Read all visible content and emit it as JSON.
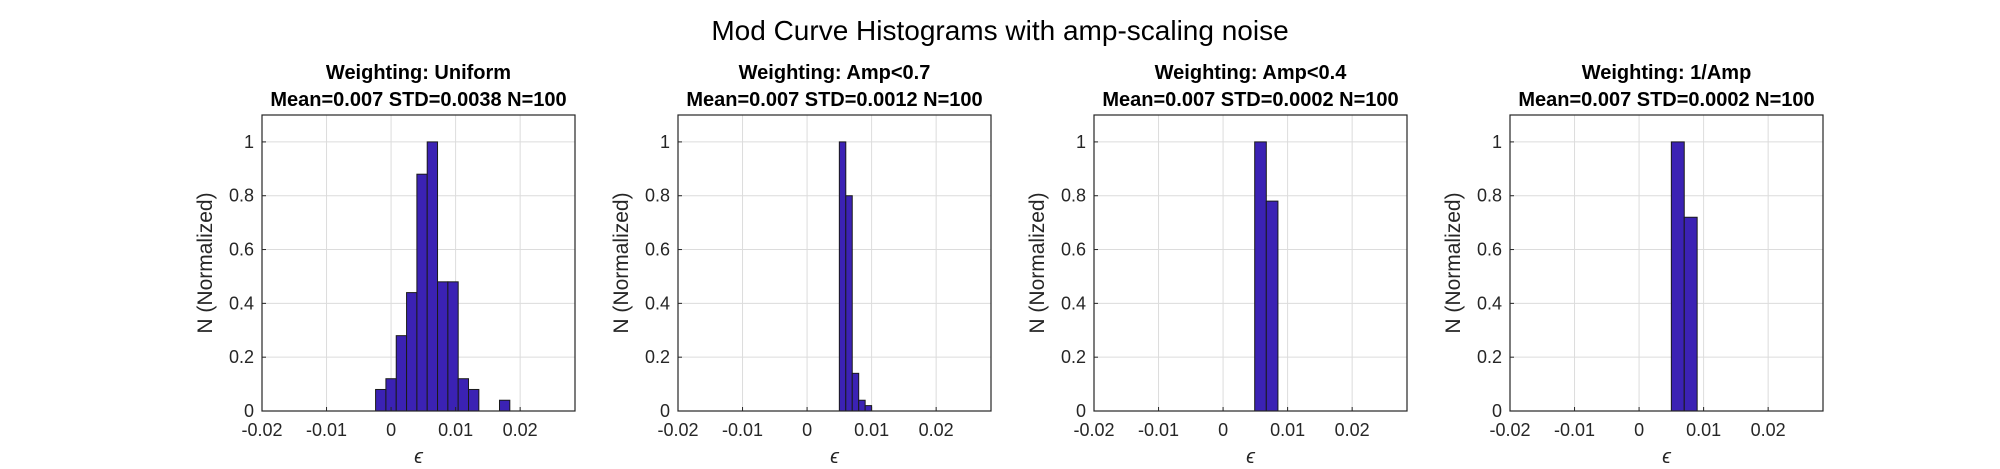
{
  "figure": {
    "title": "Mod Curve Histograms with amp-scaling noise"
  },
  "colors": {
    "bar_fill": "#3b22b4",
    "bar_edge": "#1a1a1a",
    "axis": "#262626",
    "grid": "#dcdcdc"
  },
  "chart_data": [
    {
      "type": "bar",
      "title": "Weighting: Uniform",
      "subtitle": "Mean=0.007 STD=0.0038 N=100",
      "xlabel": "ϵ",
      "ylabel": "N (Normalized)",
      "xlim": [
        -0.02,
        0.0285
      ],
      "ylim": [
        0,
        1.1
      ],
      "xticks": [
        -0.02,
        -0.01,
        0,
        0.01,
        0.02
      ],
      "xtick_labels": [
        "-0.02",
        "-0.01",
        "0",
        "0.01",
        "0.02"
      ],
      "yticks": [
        0,
        0.2,
        0.4,
        0.6,
        0.8,
        1
      ],
      "ytick_labels": [
        "0",
        "0.2",
        "0.4",
        "0.6",
        "0.8",
        "1"
      ],
      "grid": true,
      "bin_width": 0.0016,
      "bins": [
        {
          "x0": -0.0024,
          "value": 0.08
        },
        {
          "x0": -0.0008,
          "value": 0.12
        },
        {
          "x0": 0.0008,
          "value": 0.28
        },
        {
          "x0": 0.0024,
          "value": 0.44
        },
        {
          "x0": 0.004,
          "value": 0.88
        },
        {
          "x0": 0.0056,
          "value": 1.0
        },
        {
          "x0": 0.0072,
          "value": 0.48
        },
        {
          "x0": 0.0088,
          "value": 0.48
        },
        {
          "x0": 0.0104,
          "value": 0.12
        },
        {
          "x0": 0.012,
          "value": 0.08
        },
        {
          "x0": 0.0136,
          "value": 0.0
        },
        {
          "x0": 0.0152,
          "value": 0.0
        },
        {
          "x0": 0.0168,
          "value": 0.04
        }
      ]
    },
    {
      "type": "bar",
      "title": "Weighting: Amp<0.7",
      "subtitle": "Mean=0.007 STD=0.0012 N=100",
      "xlabel": "ϵ",
      "ylabel": "N (Normalized)",
      "xlim": [
        -0.02,
        0.0285
      ],
      "ylim": [
        0,
        1.1
      ],
      "xticks": [
        -0.02,
        -0.01,
        0,
        0.01,
        0.02
      ],
      "xtick_labels": [
        "-0.02",
        "-0.01",
        "0",
        "0.01",
        "0.02"
      ],
      "yticks": [
        0,
        0.2,
        0.4,
        0.6,
        0.8,
        1
      ],
      "ytick_labels": [
        "0",
        "0.2",
        "0.4",
        "0.6",
        "0.8",
        "1"
      ],
      "grid": true,
      "bin_width": 0.001,
      "bins": [
        {
          "x0": 0.005,
          "value": 1.0
        },
        {
          "x0": 0.006,
          "value": 0.8
        },
        {
          "x0": 0.007,
          "value": 0.14
        },
        {
          "x0": 0.008,
          "value": 0.04
        },
        {
          "x0": 0.009,
          "value": 0.02
        }
      ]
    },
    {
      "type": "bar",
      "title": "Weighting: Amp<0.4",
      "subtitle": "Mean=0.007 STD=0.0002 N=100",
      "xlabel": "ϵ",
      "ylabel": "N (Normalized)",
      "xlim": [
        -0.02,
        0.0285
      ],
      "ylim": [
        0,
        1.1
      ],
      "xticks": [
        -0.02,
        -0.01,
        0,
        0.01,
        0.02
      ],
      "xtick_labels": [
        "-0.02",
        "-0.01",
        "0",
        "0.01",
        "0.02"
      ],
      "yticks": [
        0,
        0.2,
        0.4,
        0.6,
        0.8,
        1
      ],
      "ytick_labels": [
        "0",
        "0.2",
        "0.4",
        "0.6",
        "0.8",
        "1"
      ],
      "grid": true,
      "bin_width": 0.0018,
      "bins": [
        {
          "x0": 0.0049,
          "value": 1.0
        },
        {
          "x0": 0.0067,
          "value": 0.78
        }
      ]
    },
    {
      "type": "bar",
      "title": "Weighting: 1/Amp",
      "subtitle": "Mean=0.007 STD=0.0002 N=100",
      "xlabel": "ϵ",
      "ylabel": "N (Normalized)",
      "xlim": [
        -0.02,
        0.0285
      ],
      "ylim": [
        0,
        1.1
      ],
      "xticks": [
        -0.02,
        -0.01,
        0,
        0.01,
        0.02
      ],
      "xtick_labels": [
        "-0.02",
        "-0.01",
        "0",
        "0.01",
        "0.02"
      ],
      "yticks": [
        0,
        0.2,
        0.4,
        0.6,
        0.8,
        1
      ],
      "ytick_labels": [
        "0",
        "0.2",
        "0.4",
        "0.6",
        "0.8",
        "1"
      ],
      "grid": true,
      "bin_width": 0.002,
      "bins": [
        {
          "x0": 0.005,
          "value": 1.0
        },
        {
          "x0": 0.007,
          "value": 0.72
        }
      ]
    }
  ]
}
